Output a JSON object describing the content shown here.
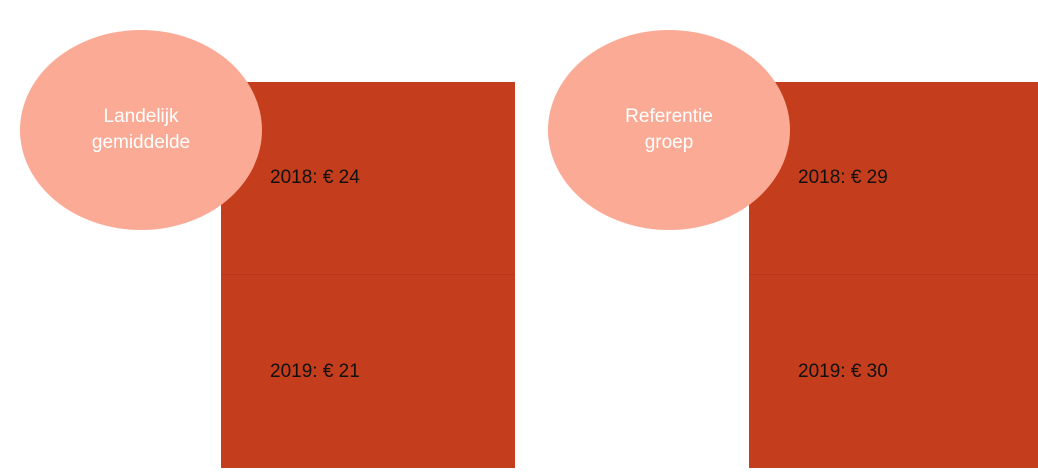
{
  "groups": [
    {
      "label": [
        "Landelijk",
        "gemiddelde"
      ],
      "items": [
        "2018: € 24",
        "2019: € 21"
      ]
    },
    {
      "label": [
        "Referentie",
        "groep"
      ],
      "items": [
        "2018: € 29",
        "2019: € 30"
      ]
    }
  ]
}
